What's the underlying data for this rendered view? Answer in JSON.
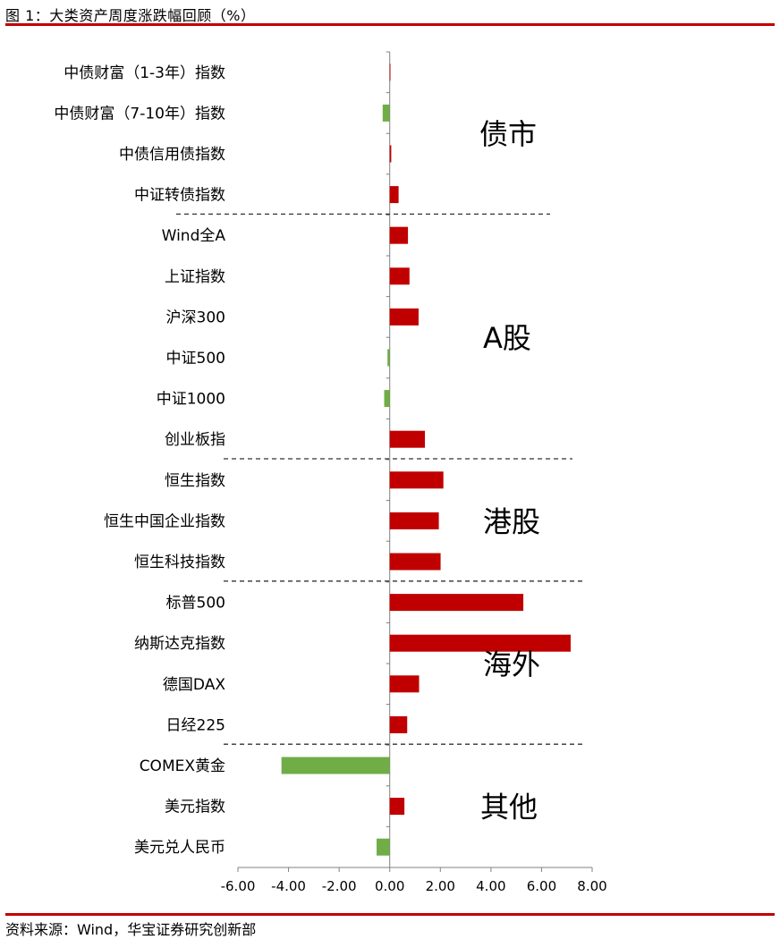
{
  "header": {
    "title": "图 1：大类资产周度涨跌幅回顾（%）"
  },
  "footer": {
    "source": "资料来源：Wind，华宝证券研究创新部"
  },
  "colors": {
    "positive": "#c00000",
    "negative": "#70ad47",
    "rule": "#c00000",
    "axis": "#808080"
  },
  "chart_data": {
    "type": "bar",
    "orientation": "horizontal",
    "categories": [
      "中债财富（1-3年）指数",
      "中债财富（7-10年）指数",
      "中债信用债指数",
      "中证转债指数",
      "Wind全A",
      "上证指数",
      "沪深300",
      "中证500",
      "中证1000",
      "创业板指",
      "恒生指数",
      "恒生中国企业指数",
      "恒生科技指数",
      "标普500",
      "纳斯达克指数",
      "德国DAX",
      "日经225",
      "COMEX黄金",
      "美元指数",
      "美元兑人民币"
    ],
    "values": [
      0.01,
      -0.28,
      0.06,
      0.35,
      0.72,
      0.78,
      1.14,
      -0.09,
      -0.22,
      1.39,
      2.12,
      1.94,
      2.01,
      5.28,
      7.15,
      1.16,
      0.69,
      -4.28,
      0.58,
      -0.52
    ],
    "xlim": [
      -6,
      8
    ],
    "xticks": [
      "-6.00",
      "-4.00",
      "-2.00",
      "0.00",
      "2.00",
      "4.00",
      "6.00",
      "8.00"
    ],
    "xtick_values": [
      -6,
      -4,
      -2,
      0,
      2,
      4,
      6,
      8
    ],
    "groups": [
      {
        "label": "债市",
        "start": 0,
        "end": 3
      },
      {
        "label": "A股",
        "start": 4,
        "end": 9
      },
      {
        "label": "港股",
        "start": 10,
        "end": 12
      },
      {
        "label": "海外",
        "start": 13,
        "end": 16
      },
      {
        "label": "其他",
        "start": 17,
        "end": 19
      }
    ],
    "legend": "none",
    "grid": false
  }
}
